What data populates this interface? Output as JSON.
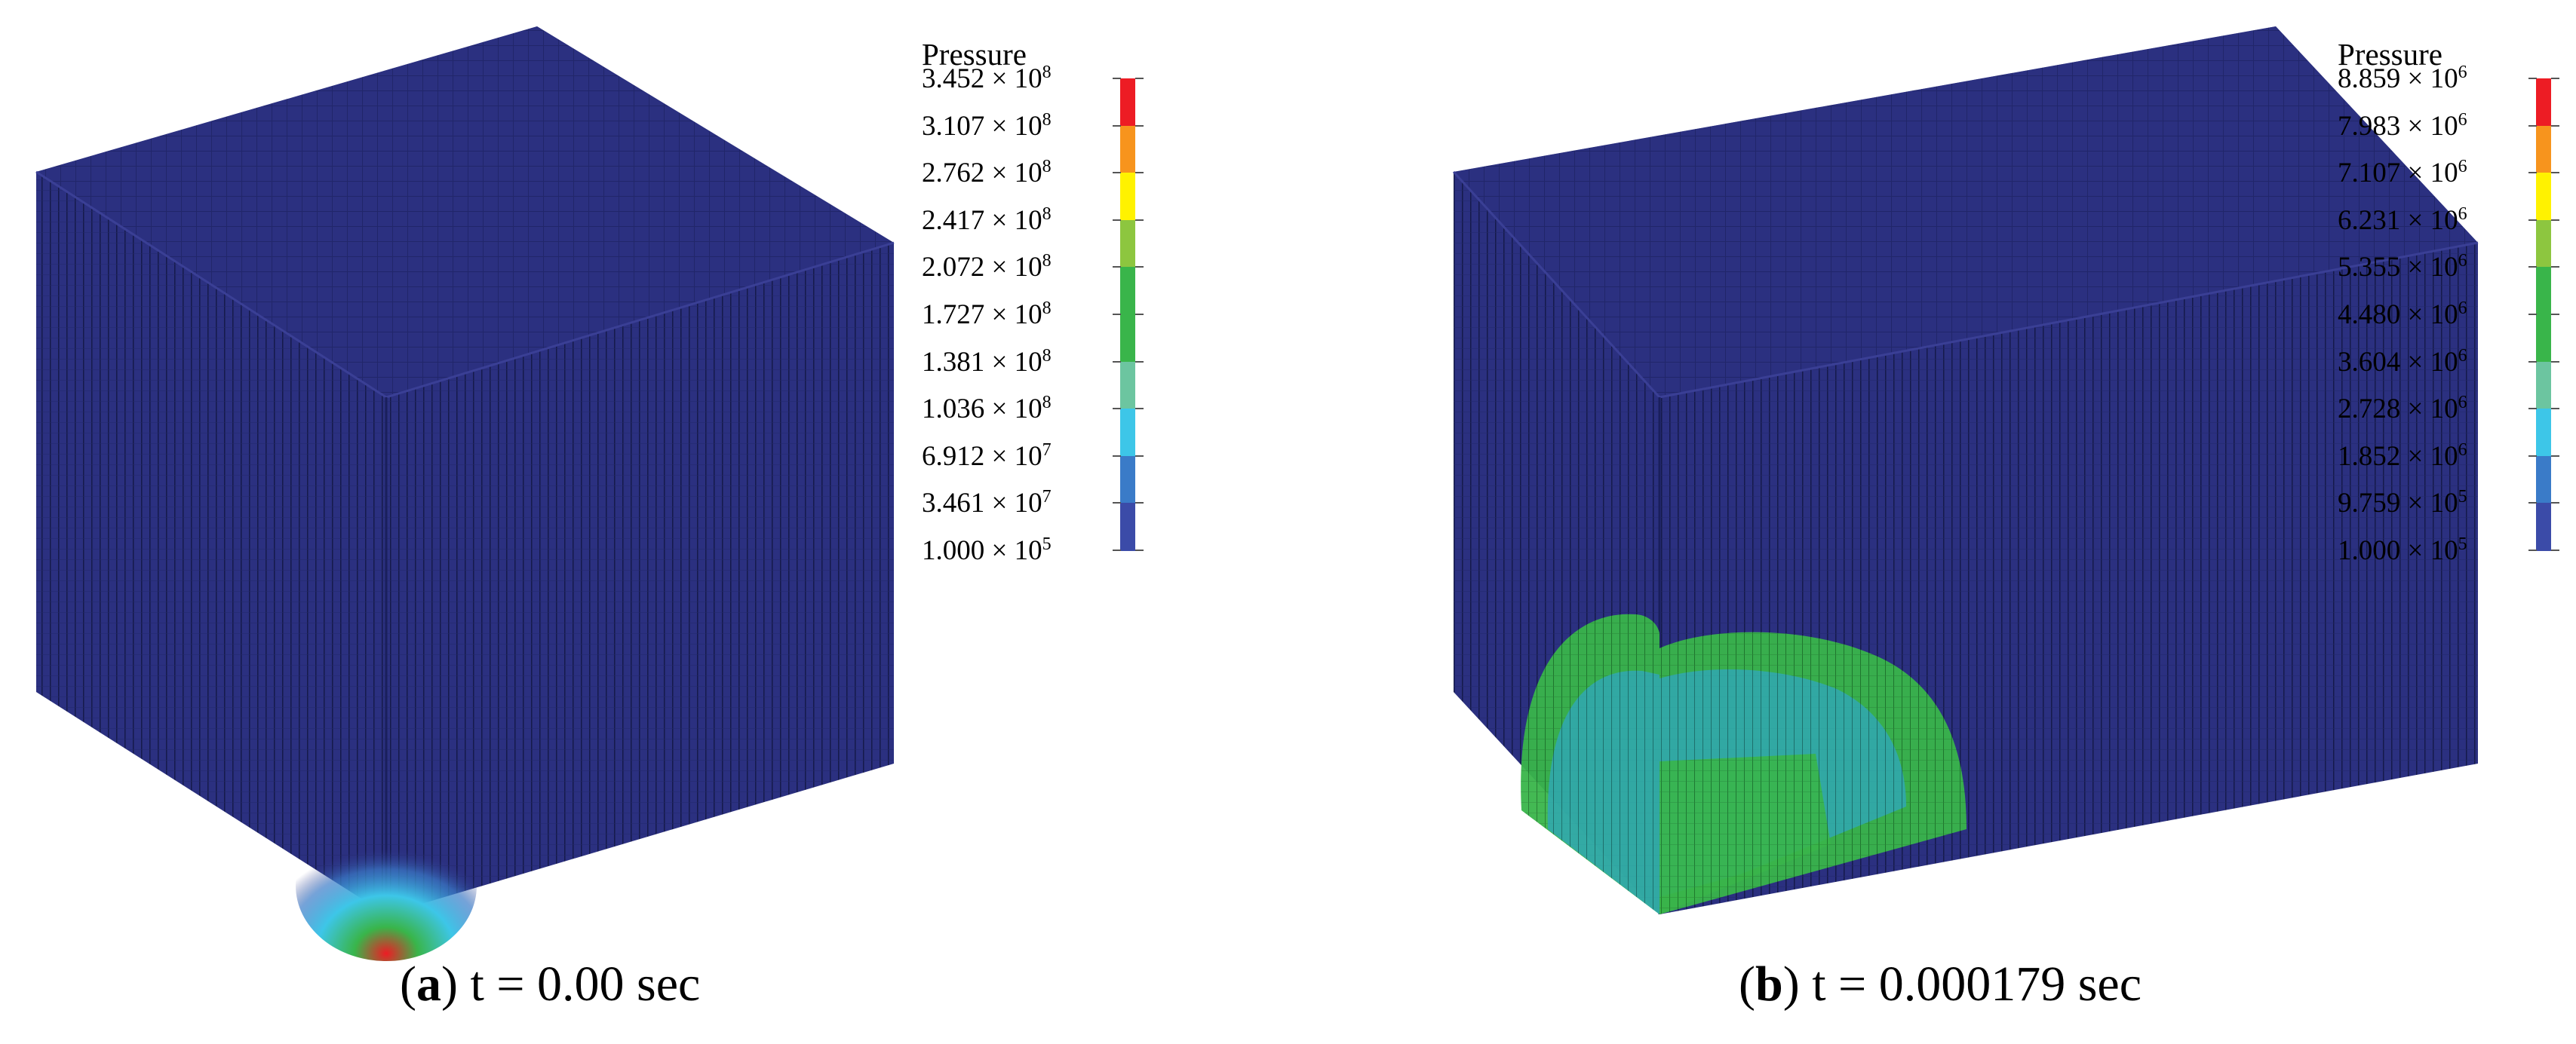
{
  "panels": [
    {
      "id": "a",
      "legend": {
        "title": "Pressure",
        "labels": [
          {
            "mant": "3.452",
            "exp": "8"
          },
          {
            "mant": "3.107",
            "exp": "8"
          },
          {
            "mant": "2.762",
            "exp": "8"
          },
          {
            "mant": "2.417",
            "exp": "8"
          },
          {
            "mant": "2.072",
            "exp": "8"
          },
          {
            "mant": "1.727",
            "exp": "8"
          },
          {
            "mant": "1.381",
            "exp": "8"
          },
          {
            "mant": "1.036",
            "exp": "8"
          },
          {
            "mant": "6.912",
            "exp": "7"
          },
          {
            "mant": "3.461",
            "exp": "7"
          },
          {
            "mant": "1.000",
            "exp": "5"
          }
        ]
      },
      "caption": {
        "letter": "a",
        "text": " t = 0.00 sec"
      }
    },
    {
      "id": "b",
      "legend": {
        "title": "Pressure",
        "labels": [
          {
            "mant": "8.859",
            "exp": "6"
          },
          {
            "mant": "7.983",
            "exp": "6"
          },
          {
            "mant": "7.107",
            "exp": "6"
          },
          {
            "mant": "6.231",
            "exp": "6"
          },
          {
            "mant": "5.355",
            "exp": "6"
          },
          {
            "mant": "4.480",
            "exp": "6"
          },
          {
            "mant": "3.604",
            "exp": "6"
          },
          {
            "mant": "2.728",
            "exp": "6"
          },
          {
            "mant": "1.852",
            "exp": "6"
          },
          {
            "mant": "9.759",
            "exp": "5"
          },
          {
            "mant": "1.000",
            "exp": "5"
          }
        ]
      },
      "caption": {
        "letter": "b",
        "text": " t = 0.000179 sec"
      }
    }
  ],
  "colorbar": [
    "#ed1c24",
    "#f7941d",
    "#fff200",
    "#8dc63f",
    "#39b54a",
    "#39b54a",
    "#6cc5a0",
    "#3dc6e8",
    "#3a7bc8",
    "#3b4ba8"
  ],
  "mesh_color": "#2b3080",
  "mesh_line_color": "#151a4a"
}
